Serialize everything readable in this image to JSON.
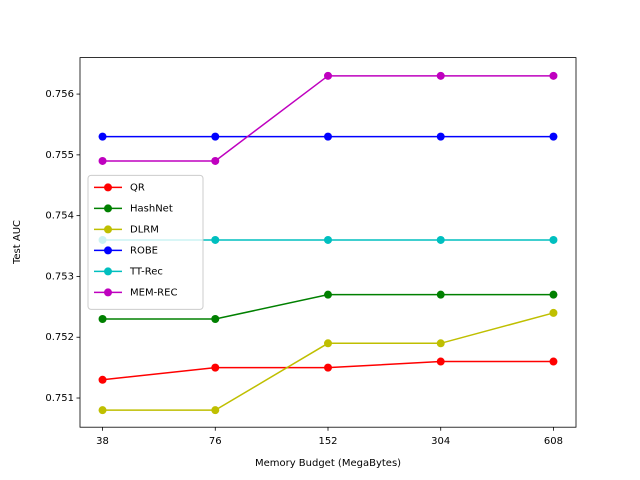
{
  "chart_data": {
    "type": "line",
    "xlabel": "Memory Budget (MegaBytes)",
    "ylabel": "Test AUC",
    "categories": [
      "38",
      "76",
      "152",
      "304",
      "608"
    ],
    "series": [
      {
        "name": "QR",
        "color": "#ff0000",
        "values": [
          0.7513,
          0.7515,
          0.7515,
          0.7516,
          0.7516
        ]
      },
      {
        "name": "HashNet",
        "color": "#008000",
        "values": [
          0.7523,
          0.7523,
          0.7527,
          0.7527,
          0.7527
        ]
      },
      {
        "name": "DLRM",
        "color": "#bfbf00",
        "values": [
          0.7508,
          0.7508,
          0.7519,
          0.7519,
          0.7524
        ]
      },
      {
        "name": "ROBE",
        "color": "#0000ff",
        "values": [
          0.7553,
          0.7553,
          0.7553,
          0.7553,
          0.7553
        ]
      },
      {
        "name": "TT-Rec",
        "color": "#00bfbf",
        "values": [
          0.7536,
          0.7536,
          0.7536,
          0.7536,
          0.7536
        ]
      },
      {
        "name": "MEM-REC",
        "color": "#bf00bf",
        "values": [
          0.7549,
          0.7549,
          0.7563,
          0.7563,
          0.7563
        ]
      }
    ],
    "ylim": [
      0.75052,
      0.7566
    ],
    "yticks": [
      0.751,
      0.752,
      0.753,
      0.754,
      0.755,
      0.756
    ],
    "grid": false,
    "legend": "center left"
  }
}
